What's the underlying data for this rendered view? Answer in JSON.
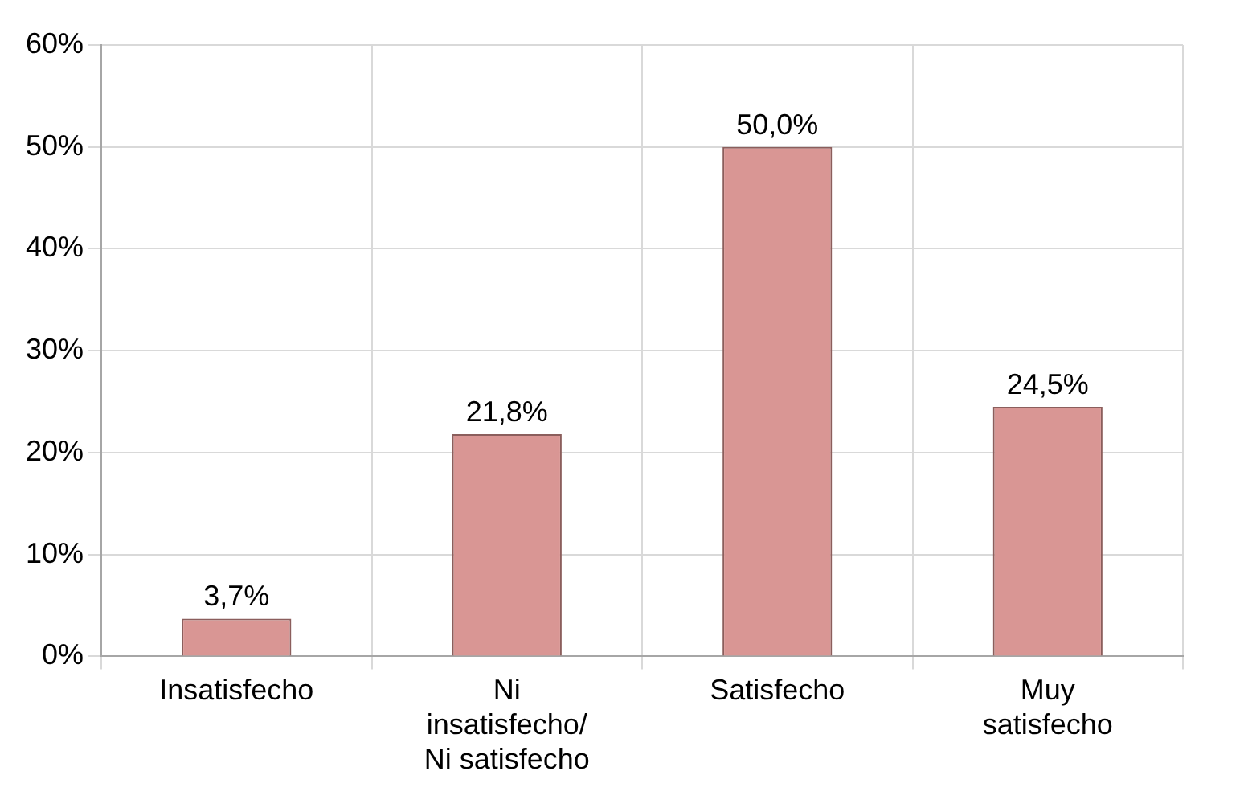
{
  "chart_data": {
    "type": "bar",
    "categories": [
      "Insatisfecho",
      "Ni insatisfecho/ Ni satisfecho",
      "Satisfecho",
      "Muy satisfecho"
    ],
    "values": [
      3.7,
      21.8,
      50.0,
      24.5
    ],
    "value_labels": [
      "3,7%",
      "21,8%",
      "50,0%",
      "24,5%"
    ],
    "color": "#d99694",
    "ylim": [
      0,
      60
    ],
    "yticks": [
      {
        "value": 0,
        "label": "0%"
      },
      {
        "value": 10,
        "label": "10%"
      },
      {
        "value": 20,
        "label": "20%"
      },
      {
        "value": 30,
        "label": "30%"
      },
      {
        "value": 40,
        "label": "40%"
      },
      {
        "value": 50,
        "label": "50%"
      },
      {
        "value": 60,
        "label": "60%"
      }
    ],
    "grid": true,
    "legend": false
  }
}
